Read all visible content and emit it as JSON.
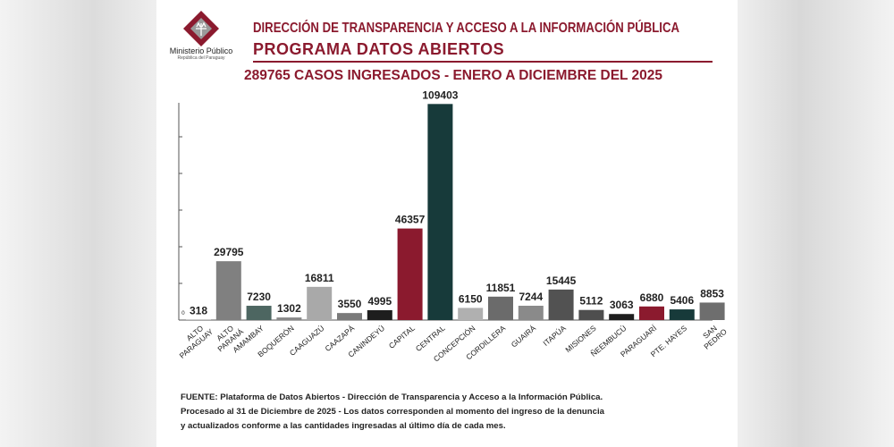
{
  "header": {
    "org": "Ministerio Público",
    "country": "República del Paraguay",
    "title": "DIRECCIÓN DE TRANSPARENCIA Y ACCESO A LA INFORMACIÓN PÚBLICA",
    "program": "PROGRAMA  DATOS ABIERTOS"
  },
  "chart_data": {
    "type": "bar",
    "title": "289765 CASOS INGRESADOS - ENERO A DICIEMBRE DEL 2025",
    "xlabel": "",
    "ylabel": "",
    "ylim": [
      0,
      110000
    ],
    "y_tick_labels": [
      "0"
    ],
    "categories": [
      "ALTO PARAGUAY",
      "ALTO PARANÁ",
      "AMAMBAY",
      "BOQUERÓN",
      "CAAGUAZÚ",
      "CAAZAPÁ",
      "CANINDEYÚ",
      "CAPITAL",
      "CENTRAL",
      "CONCEPCIÓN",
      "CORDILLERA",
      "GUAIRÁ",
      "ITAPÚA",
      "MISIONES",
      "ÑEEMBUCÚ",
      "PARAGUARÍ",
      "PTE. HAYES",
      "SAN PEDRO"
    ],
    "values": [
      318,
      29795,
      7230,
      1302,
      16811,
      3550,
      4995,
      46357,
      109403,
      6150,
      11851,
      7244,
      15445,
      5112,
      3063,
      6880,
      5406,
      8853
    ],
    "colors": [
      "#b5b5b5",
      "#808080",
      "#4d6661",
      "#888888",
      "#a9a9a9",
      "#7a7a7a",
      "#1e1e1e",
      "#8b1a2e",
      "#173a3a",
      "#b0b0b0",
      "#6b6b6b",
      "#8a8a8a",
      "#525252",
      "#4e4e4e",
      "#1e1e1e",
      "#8b1a2e",
      "#173a3a",
      "#6e6e6e"
    ]
  },
  "footer": {
    "line1": "FUENTE: Plataforma de Datos Abiertos - Dirección de Transparencia y Acceso a la Información Pública.",
    "line2": "Procesado al 31 de Diciembre de 2025 - Los datos corresponden al momento del ingreso de la denuncia",
    "line3": "y actualizados conforme a las cantidades ingresadas al último día de cada mes."
  }
}
